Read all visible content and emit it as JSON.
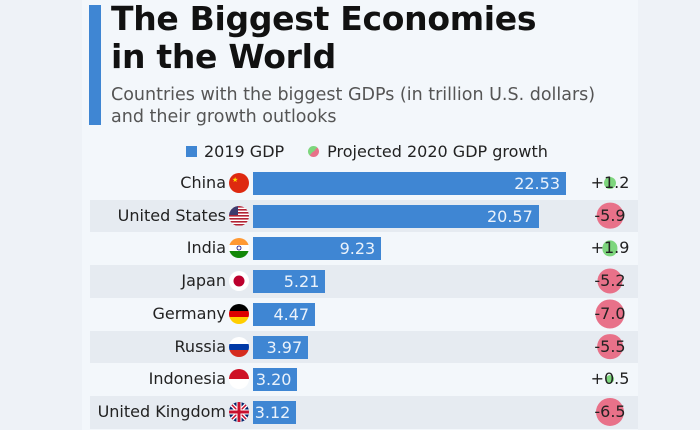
{
  "title_line1": "The Biggest Economies",
  "title_line2": "in the World",
  "subtitle_line1": "Countries with the biggest GDPs (in trillion U.S. dollars)",
  "subtitle_line2": "and their growth outlooks",
  "colors": {
    "bar": "#3f86d3",
    "positive": "#7dd67d",
    "negative": "#e87189",
    "accent": "#3f86d3"
  },
  "chart_data": {
    "type": "bar",
    "title": "The Biggest Economies in the World",
    "subtitle": "Countries with the biggest GDPs (in trillion U.S. dollars) and their growth outlooks",
    "orientation": "horizontal",
    "legend": [
      "2019 GDP",
      "Projected 2020 GDP growth"
    ],
    "legend_position": "top",
    "categories": [
      "China",
      "United States",
      "India",
      "Japan",
      "Germany",
      "Russia",
      "Indonesia",
      "United Kingdom"
    ],
    "series": [
      {
        "name": "2019 GDP",
        "values": [
          22.53,
          20.57,
          9.23,
          5.21,
          4.47,
          3.97,
          3.2,
          3.12
        ]
      },
      {
        "name": "Projected 2020 GDP growth",
        "values": [
          1.2,
          -5.9,
          1.9,
          -5.2,
          -7.0,
          -5.5,
          0.5,
          -6.5
        ]
      }
    ],
    "value_labels": [
      "22.53",
      "20.57",
      "9.23",
      "5.21",
      "4.47",
      "3.97",
      "3.20",
      "3.12"
    ],
    "growth_labels": [
      "+1.2",
      "-5.9",
      "+1.9",
      "-5.2",
      "-7.0",
      "-5.5",
      "+0.5",
      "-6.5"
    ],
    "flags": [
      "china-flag",
      "usa-flag",
      "india-flag",
      "japan-flag",
      "germany-flag",
      "russia-flag",
      "indonesia-flag",
      "uk-flag"
    ],
    "xlim": [
      0,
      22.53
    ]
  }
}
